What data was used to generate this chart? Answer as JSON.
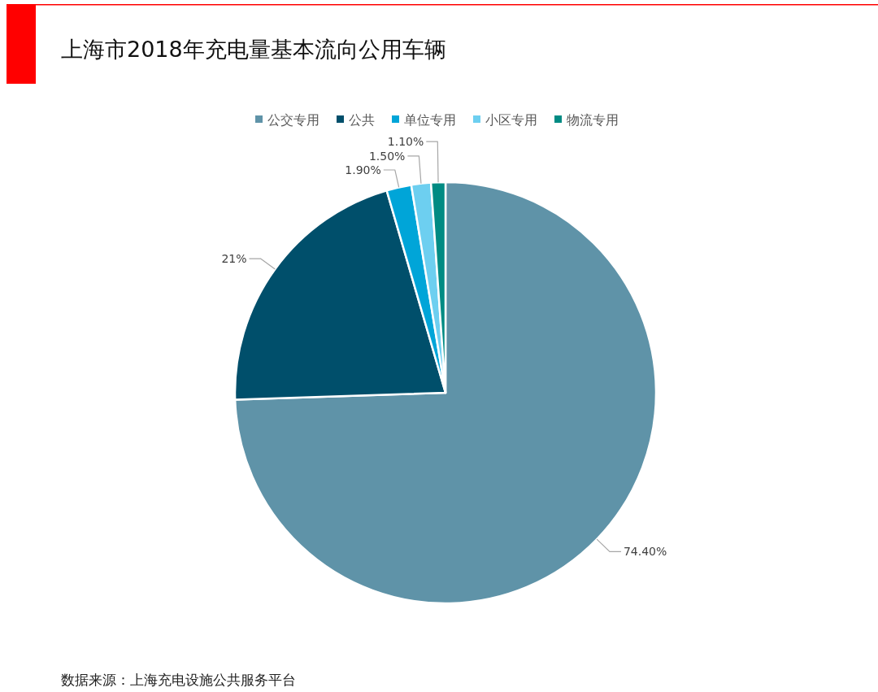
{
  "chart_data": {
    "type": "pie",
    "title": "上海市2018年充电量基本流向公用车辆",
    "categories": [
      "公交专用",
      "公共",
      "单位专用",
      "小区专用",
      "物流专用"
    ],
    "values": [
      74.4,
      21,
      1.9,
      1.5,
      1.1
    ],
    "colors": [
      "#5f93a8",
      "#004f6b",
      "#00a5d8",
      "#6dcff0",
      "#008b83"
    ],
    "value_labels": [
      "74.40%",
      "21%",
      "1.90%",
      "1.50%",
      "1.10%"
    ],
    "legend": "top",
    "annotations": [
      "数据来源：上海充电设施公共服务平台"
    ]
  }
}
